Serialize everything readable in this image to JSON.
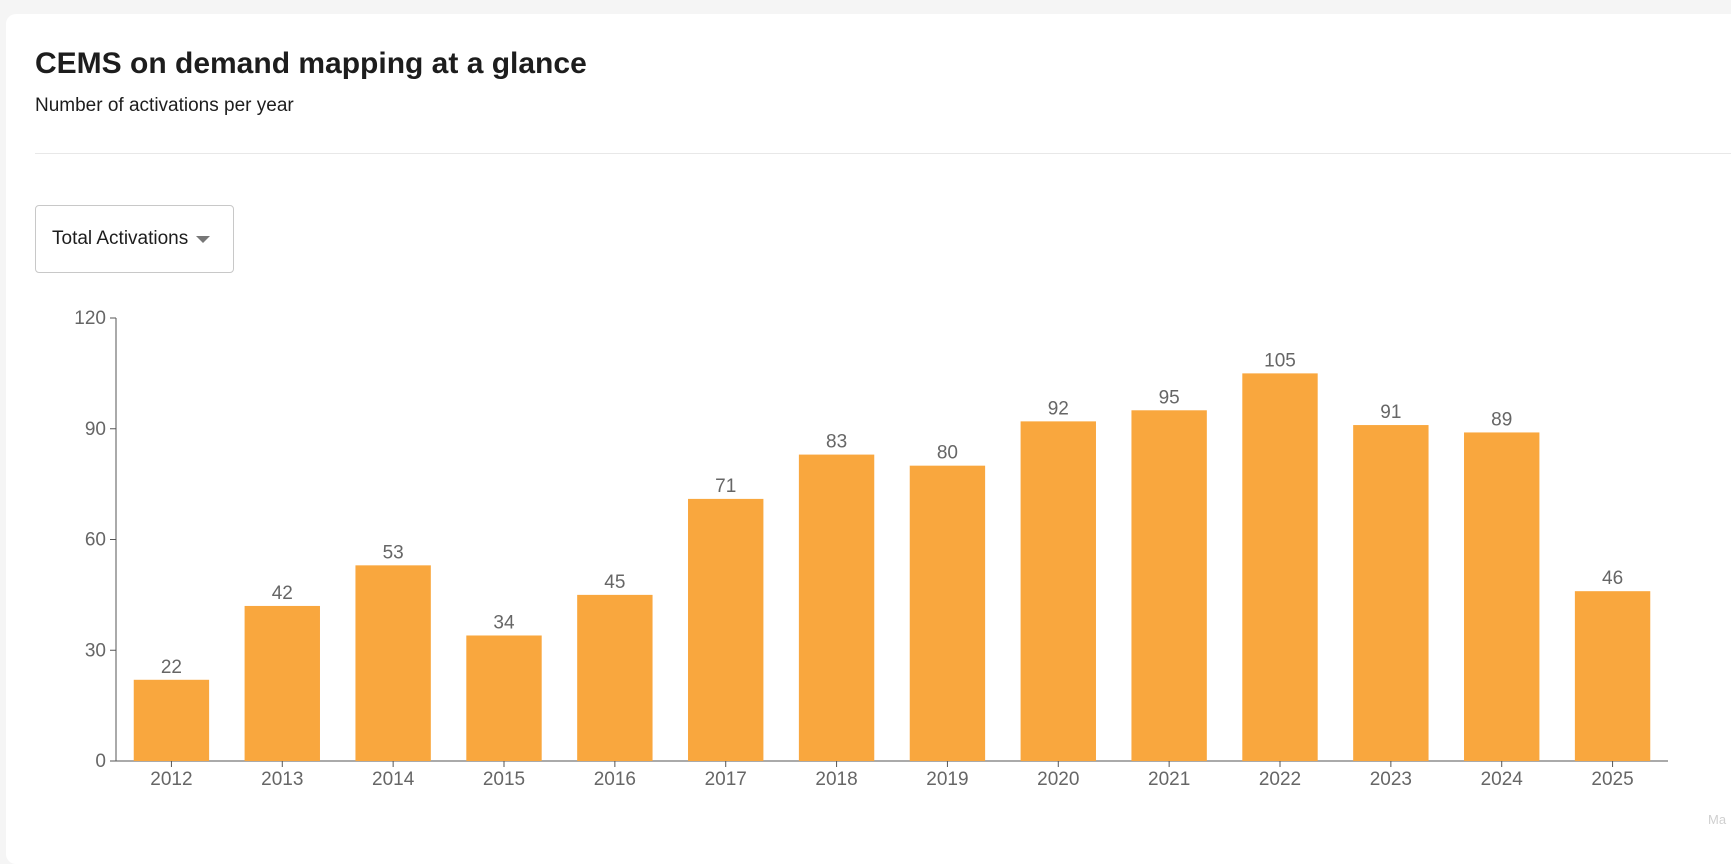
{
  "header": {
    "title": "CEMS on demand mapping at a glance",
    "subtitle": "Number of activations per year"
  },
  "dropdown": {
    "selected": "Total Activations",
    "icon": "caret-down-icon"
  },
  "watermark": "Ma",
  "colors": {
    "bar": "#f9a73e",
    "axis": "#555555",
    "label": "#666666"
  },
  "chart_data": {
    "type": "bar",
    "categories": [
      "2012",
      "2013",
      "2014",
      "2015",
      "2016",
      "2017",
      "2018",
      "2019",
      "2020",
      "2021",
      "2022",
      "2023",
      "2024",
      "2025"
    ],
    "values": [
      22,
      42,
      53,
      34,
      45,
      71,
      83,
      80,
      92,
      95,
      105,
      91,
      89,
      46
    ],
    "title": "",
    "xlabel": "",
    "ylabel": "",
    "ylim": [
      0,
      120
    ],
    "yticks": [
      0,
      30,
      60,
      90,
      120
    ],
    "grid": false,
    "data_labels": true,
    "legend": "none"
  }
}
